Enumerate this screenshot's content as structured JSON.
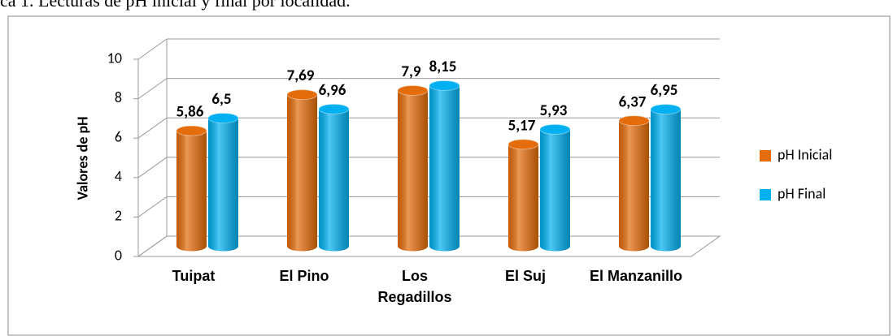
{
  "chart_data": {
    "type": "bar3d",
    "title": "ca 1. Lecturas de pH inicial y final por localidad.",
    "y_label": "Valores de pH",
    "categories": [
      "Tuipat",
      "El Pino",
      "Los Regadillos",
      "El Suj",
      "El Manzanillo"
    ],
    "series": [
      {
        "name": "pH Inicial",
        "color": "#e46c0a",
        "values": [
          5.86,
          7.69,
          7.9,
          5.17,
          6.37
        ],
        "value_labels": [
          "5,86",
          "7,69",
          "7,9",
          "5,17",
          "6,37"
        ]
      },
      {
        "name": "pH Final",
        "color": "#00b0f0",
        "values": [
          6.5,
          6.96,
          8.15,
          5.93,
          6.95
        ],
        "value_labels": [
          "6,5",
          "6,96",
          "8,15",
          "5,93",
          "6,95"
        ]
      }
    ],
    "ylim": [
      0,
      10
    ],
    "yticks": [
      0,
      2,
      4,
      6,
      8,
      10
    ],
    "grid": true,
    "legend": "right"
  }
}
